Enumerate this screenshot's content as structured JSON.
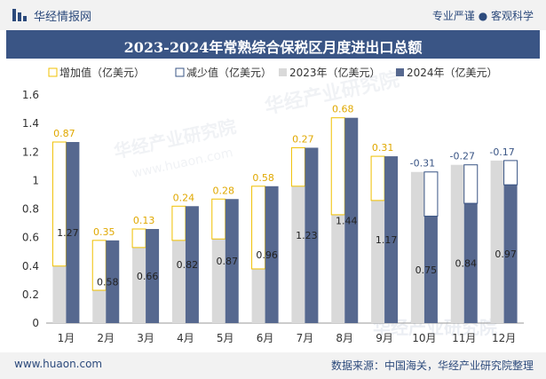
{
  "header": {
    "brand": "华经情报网",
    "tagline": "专业严谨 ● 客观科学"
  },
  "footer": {
    "url": "www.huaon.com",
    "source": "数据来源：中国海关，华经产业研究院整理"
  },
  "watermark": {
    "text": "华经产业研究院",
    "url": "www.huaon.com"
  },
  "colors": {
    "bar2023": "#d9d9d9",
    "bar2024": "#56688f",
    "increase": "#f0c000",
    "decrease": "#3a5585",
    "header_bg": "#3a5585",
    "brand": "#2c4a7c"
  },
  "chart_data": {
    "type": "bar",
    "title": "2023-2024年常熟综合保税区月度进出口总额",
    "categories": [
      "1月",
      "2月",
      "3月",
      "4月",
      "5月",
      "6月",
      "7月",
      "8月",
      "9月",
      "10月",
      "11月",
      "12月"
    ],
    "series": [
      {
        "name": "2023年（亿美元）",
        "values": [
          0.4,
          0.23,
          0.53,
          0.58,
          0.59,
          0.38,
          0.96,
          0.76,
          0.86,
          1.06,
          1.11,
          1.14
        ]
      },
      {
        "name": "2024年（亿美元）",
        "values": [
          1.27,
          0.58,
          0.66,
          0.82,
          0.87,
          0.96,
          1.23,
          1.44,
          1.17,
          0.75,
          0.84,
          0.97
        ]
      }
    ],
    "change": {
      "increase_name": "增加值（亿美元）",
      "decrease_name": "减少值（亿美元）",
      "values": [
        0.87,
        0.35,
        0.13,
        0.24,
        0.28,
        0.58,
        0.27,
        0.68,
        0.31,
        -0.31,
        -0.27,
        -0.17
      ]
    },
    "y_ticks": [
      "0",
      "0.2",
      "0.4",
      "0.6",
      "0.8",
      "1",
      "1.2",
      "1.4",
      "1.6"
    ],
    "ylim": [
      0,
      1.6
    ],
    "legend_position": "top",
    "grid": false
  }
}
